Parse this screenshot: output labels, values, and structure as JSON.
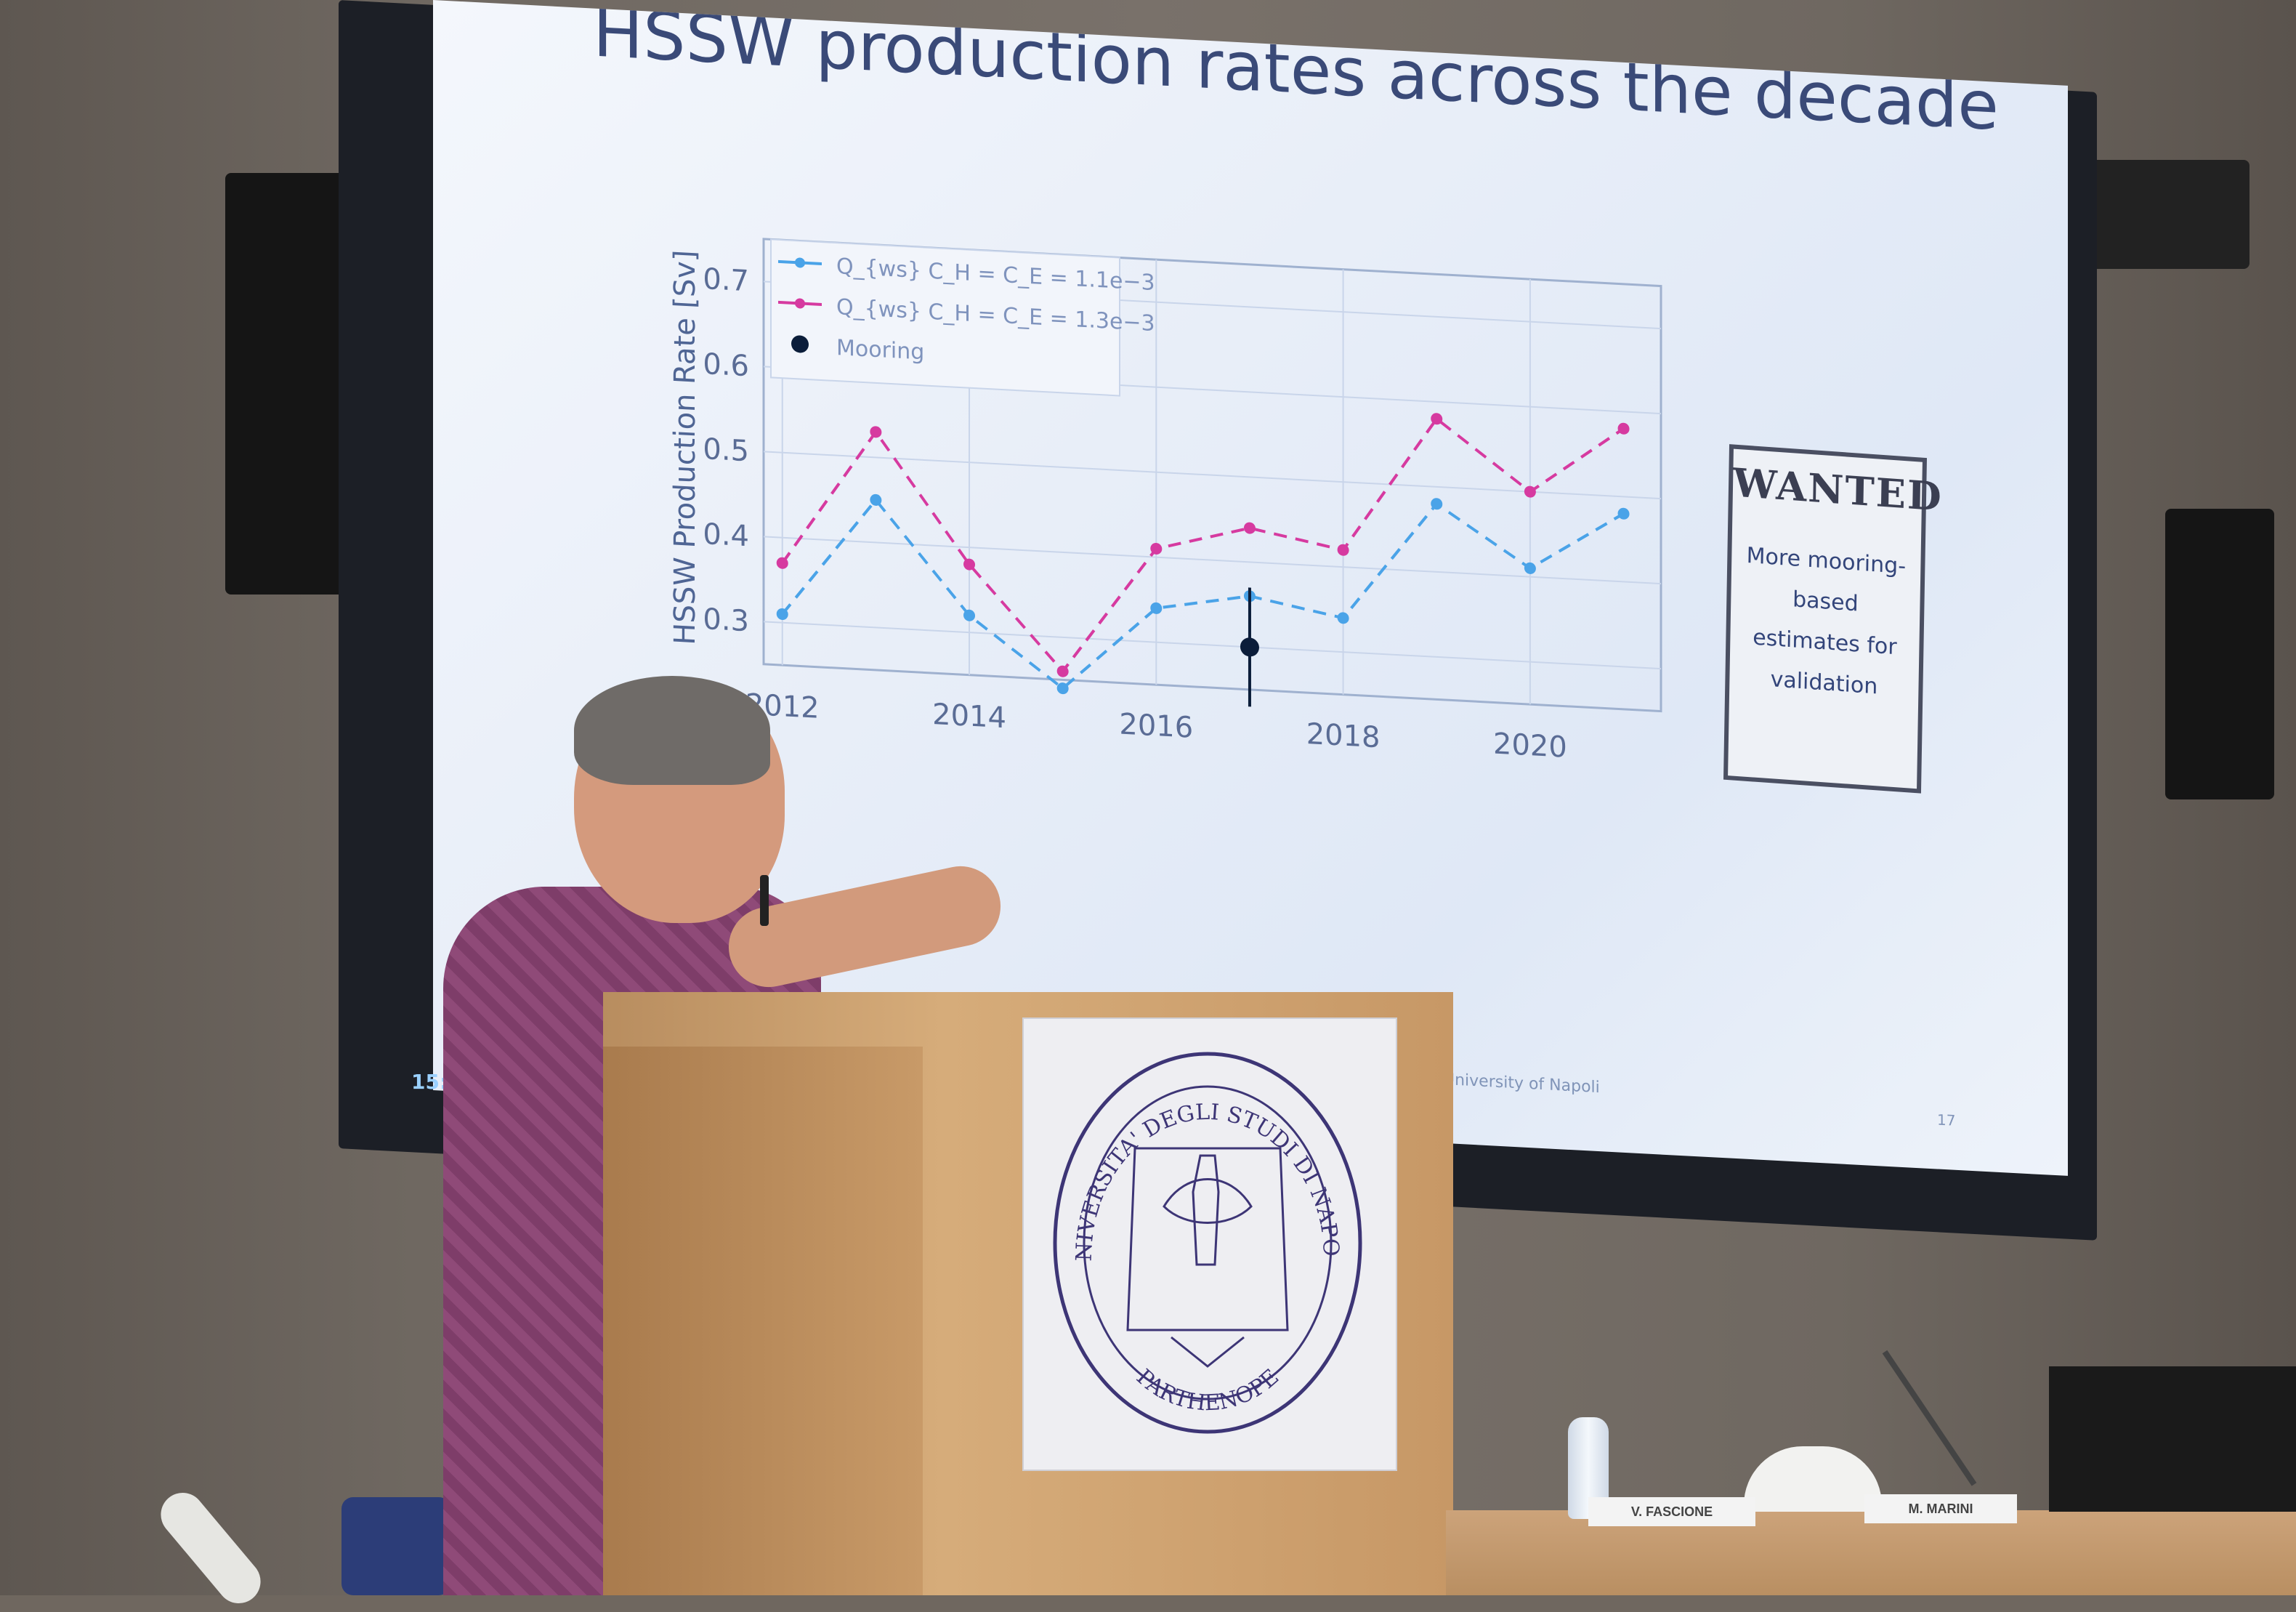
{
  "slide": {
    "title": "HSSW production rates across the decade",
    "footer_text": "University of Napoli",
    "page_number": "17"
  },
  "clock": "15:0",
  "chart_data": {
    "type": "line",
    "title": "",
    "xlabel": "",
    "ylabel": "HSSW Production Rate [Sv]",
    "x_ticks": [
      "2012",
      "2014",
      "2016",
      "2018",
      "2020"
    ],
    "y_ticks": [
      "0.3",
      "0.4",
      "0.5",
      "0.6",
      "0.7"
    ],
    "ylim": [
      0.25,
      0.75
    ],
    "xlim": [
      2011.8,
      2021.4
    ],
    "legend_position": "top-left",
    "series": [
      {
        "name": "Q_{ws} C_H = C_E = 1.1e−3",
        "color": "#4aa3e8",
        "style": "dashed",
        "x": [
          2012,
          2013,
          2014,
          2015,
          2016,
          2017,
          2018,
          2019,
          2020,
          2021
        ],
        "values": [
          0.31,
          0.45,
          0.32,
          0.24,
          0.34,
          0.36,
          0.34,
          0.48,
          0.41,
          0.48
        ]
      },
      {
        "name": "Q_{ws} C_H = C_E = 1.3e−3",
        "color": "#d63aa0",
        "style": "dashed",
        "x": [
          2012,
          2013,
          2014,
          2015,
          2016,
          2017,
          2018,
          2019,
          2020,
          2021
        ],
        "values": [
          0.37,
          0.53,
          0.38,
          0.26,
          0.41,
          0.44,
          0.42,
          0.58,
          0.5,
          0.58
        ]
      },
      {
        "name": "Mooring",
        "color": "#0b1d3a",
        "style": "marker",
        "x": [
          2017
        ],
        "values": [
          0.3
        ],
        "error": [
          0.07
        ]
      }
    ]
  },
  "wanted_poster": {
    "heading": "WANTED",
    "body": "More mooring-based estimates for validation"
  },
  "seal": {
    "ring_text": "UNIVERSITA' DEGLI STUDI DI NAPOLI",
    "bottom_text": "PARTHENOPE"
  },
  "nameplates": [
    "V. FASCIONE",
    "M. MARINI"
  ]
}
